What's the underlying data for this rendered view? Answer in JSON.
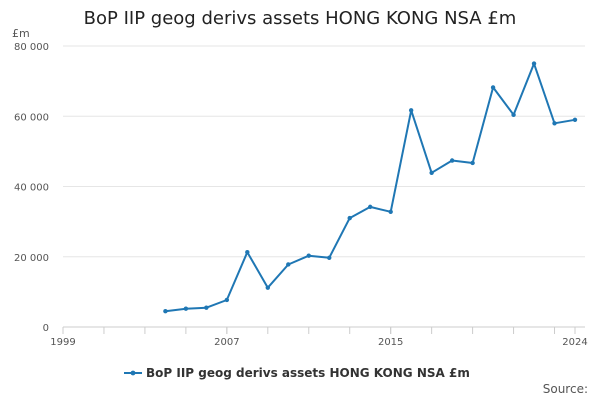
{
  "chart_data": {
    "type": "line",
    "title": "BoP IIP geog derivs assets HONG KONG NSA £m",
    "ylabel": "£m",
    "xlabel": "",
    "xlim": [
      1999,
      2024
    ],
    "ylim": [
      0,
      80000
    ],
    "x_ticks": [
      "1999",
      "2007",
      "2015",
      "2024"
    ],
    "y_ticks": [
      "0",
      "20 000",
      "40 000",
      "60 000",
      "80 000"
    ],
    "grid": true,
    "legend": "bottom",
    "series": [
      {
        "name": "BoP IIP geog derivs assets HONG KONG NSA £m",
        "color": "#1f77b4",
        "x": [
          2004,
          2005,
          2006,
          2007,
          2008,
          2009,
          2010,
          2011,
          2012,
          2013,
          2014,
          2015,
          2016,
          2017,
          2018,
          2019,
          2020,
          2021,
          2022,
          2023,
          2024
        ],
        "values": [
          4500,
          5200,
          5500,
          7700,
          21300,
          11200,
          17800,
          20300,
          19700,
          31000,
          34200,
          32800,
          61700,
          43900,
          47400,
          46700,
          68200,
          60400,
          75000,
          58000,
          59000
        ]
      }
    ]
  },
  "source_label": "Source:"
}
